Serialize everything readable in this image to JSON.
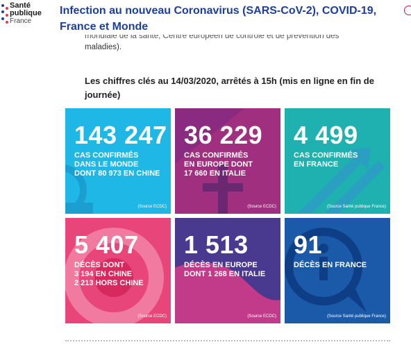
{
  "header": {
    "logo": {
      "line1": "Santé",
      "line2": "publique",
      "line3": "France"
    },
    "title": "Infection au nouveau Coronavirus (SARS-CoV-2), COVID-19, France et Monde"
  },
  "intro": {
    "partial_line": "mondiale de la santé, Centre européen de contrôle et de prévention des",
    "line2": "maladies)."
  },
  "key_figures_heading": "Les chiffres clés au 14/03/2020, arrêtés à 15h (mis en ligne en fin de journée)",
  "tiles": [
    {
      "number": "143 247",
      "lines": [
        "CAS CONFIRMÉS",
        "DANS LE MONDE",
        "DONT 80 973 EN CHINE"
      ],
      "source": "(Source ECDC)",
      "color": "#1fb8e6"
    },
    {
      "number": "36 229",
      "lines": [
        "CAS CONFIRMÉS",
        "EN EUROPE DONT",
        "17 660 EN ITALIE"
      ],
      "source": "(Source ECDC)",
      "color": "#a0307f"
    },
    {
      "number": "4 499",
      "lines": [
        "CAS CONFIRMÉS",
        "EN FRANCE"
      ],
      "source": "(Source Santé publique France)",
      "color": "#1fb0b0"
    },
    {
      "number": "5 407",
      "lines": [
        "DÉCÈS DONT",
        "3 194 EN CHINE",
        "2 213 HORS CHINE"
      ],
      "source": "(Source ECDC)",
      "color": "#e8467a"
    },
    {
      "number": "1 513",
      "lines": [
        "DÉCÈS EN EUROPE",
        "DONT 1 268 EN ITALIE"
      ],
      "source": "(Source ECDC)",
      "color": "#4a3a8f"
    },
    {
      "number": "91",
      "lines": [
        "DÉCÈS EN FRANCE"
      ],
      "source": "(Source Santé publique France)",
      "color": "#1a5aa8"
    }
  ],
  "colors": {
    "title": "#1c3f9e",
    "brand_pink": "#c2185b"
  }
}
